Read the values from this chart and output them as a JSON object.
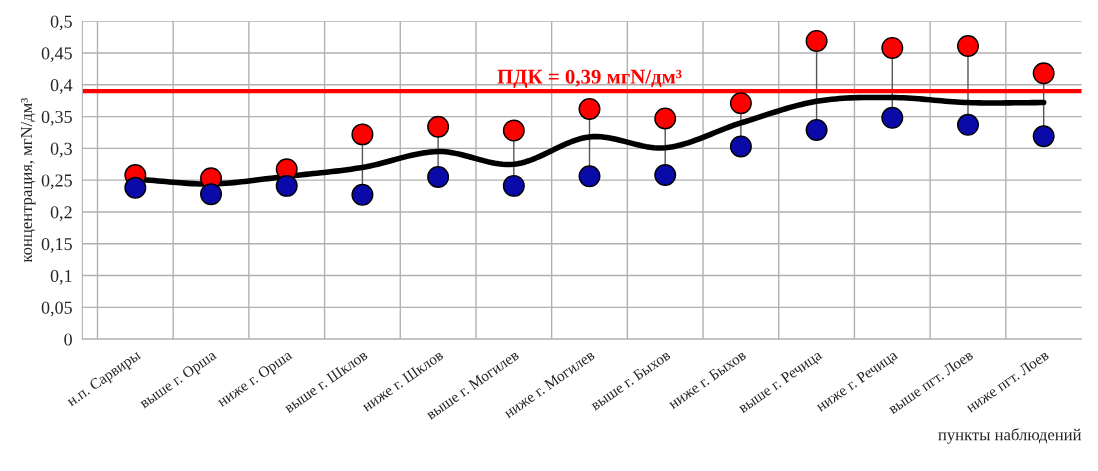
{
  "chart_data": {
    "type": "scatter",
    "xlabel": "пункты наблюдений",
    "ylabel": "концентрация, мгN/дм³",
    "categories": [
      "н.п. Сарвиры",
      "выше г. Орша",
      "ниже г. Орша",
      "выше г. Шклов",
      "ниже г. Шклов",
      "выше г. Могилев",
      "ниже г. Могилев",
      "выше г. Быхов",
      "ниже г. Быхов",
      "выше г. Речица",
      "ниже г. Речица",
      "выше пгт. Лоев",
      "ниже пгт. Лоев"
    ],
    "series": [
      {
        "type": "line",
        "color": "#000000",
        "marker": "none",
        "values": [
          0.251,
          0.244,
          0.256,
          0.27,
          0.295,
          0.275,
          0.318,
          0.301,
          0.34,
          0.374,
          0.38,
          0.372,
          0.372
        ]
      },
      {
        "color": "#ff0000",
        "marker": "circle",
        "values": [
          0.258,
          0.253,
          0.267,
          0.322,
          0.334,
          0.328,
          0.362,
          0.347,
          0.371,
          0.469,
          0.458,
          0.461,
          0.418
        ]
      },
      {
        "color": "#0a0aa8",
        "marker": "circle",
        "values": [
          0.238,
          0.228,
          0.241,
          0.227,
          0.255,
          0.241,
          0.256,
          0.258,
          0.303,
          0.329,
          0.348,
          0.337,
          0.319
        ]
      }
    ],
    "ylim": [
      0,
      0.5
    ],
    "yticks": [
      {
        "value": 0,
        "label": "0"
      },
      {
        "value": 0.05,
        "label": "0,05"
      },
      {
        "value": 0.1,
        "label": "0,1"
      },
      {
        "value": 0.15,
        "label": "0,15"
      },
      {
        "value": 0.2,
        "label": "0,2"
      },
      {
        "value": 0.25,
        "label": "0,25"
      },
      {
        "value": 0.3,
        "label": "0,3"
      },
      {
        "value": 0.35,
        "label": "0,35"
      },
      {
        "value": 0.4,
        "label": "0,4"
      },
      {
        "value": 0.45,
        "label": "0,45"
      },
      {
        "value": 0.5,
        "label": "0,5"
      }
    ],
    "ref_lines": [
      {
        "axis": "y",
        "value": 0.39,
        "label": "ПДК = 0,39 мгN/дм³",
        "color": "#ff0000",
        "line_style": "solid"
      }
    ],
    "grid": true,
    "legend": false
  }
}
